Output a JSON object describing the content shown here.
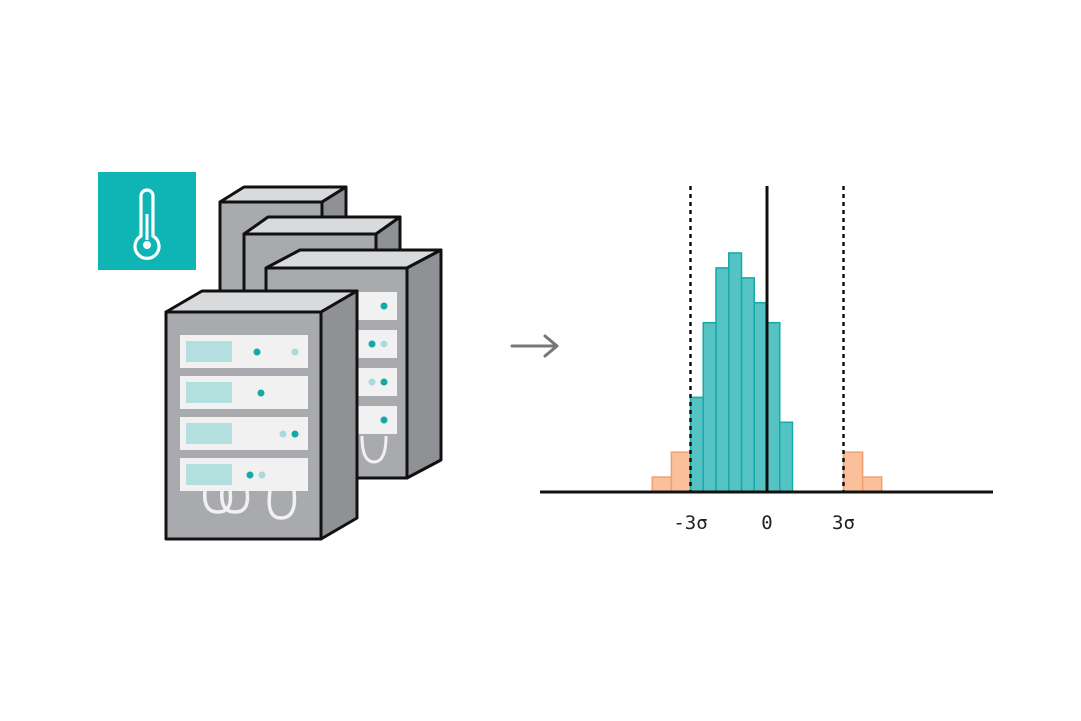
{
  "colors": {
    "accent": "#0fb5b5",
    "normal_bar": "#55c3c3",
    "normal_bar_stroke": "#14aaaa",
    "outlier_bar": "#f9c09a",
    "outlier_bar_stroke": "#f0a070",
    "server_body": "#a8aaad",
    "server_top": "#d9dadb",
    "slot": "#f1f1f1",
    "screen": "#b3dfdf",
    "led": "#14a8a8",
    "led_dim": "#a9dada",
    "outline": "#111111",
    "arrow": "#777777"
  },
  "icons": {
    "thermometer": "thermometer-icon",
    "arrow": "arrow-right-icon",
    "server_rack": "server-rack-icon"
  },
  "chart_data": {
    "type": "bar",
    "title": "",
    "xlabel": "",
    "ylabel": "",
    "x_ticks": [
      {
        "label": "-3σ",
        "value": -3
      },
      {
        "label": "0",
        "value": 0
      },
      {
        "label": "3σ",
        "value": 3
      }
    ],
    "xlim": [
      -5,
      5
    ],
    "ylim": [
      0,
      12
    ],
    "threshold_lines": [
      -3,
      3
    ],
    "center_line": 0,
    "bin_width": 0.5,
    "series": [
      {
        "role": "outlier",
        "bars": [
          {
            "x0": -4.5,
            "value": 0.6
          },
          {
            "x0": -3.75,
            "value": 1.6
          },
          {
            "x0": 3.0,
            "value": 1.6
          },
          {
            "x0": 3.75,
            "value": 0.6
          }
        ]
      },
      {
        "role": "normal",
        "bars": [
          {
            "x0": -3.0,
            "value": 3.8
          },
          {
            "x0": -2.5,
            "value": 6.8
          },
          {
            "x0": -2.0,
            "value": 9.0
          },
          {
            "x0": -1.5,
            "value": 9.6
          },
          {
            "x0": -1.0,
            "value": 8.6
          },
          {
            "x0": -0.5,
            "value": 7.6
          },
          {
            "x0": 0.0,
            "value": 6.8
          },
          {
            "x0": 0.5,
            "value": 2.8
          }
        ]
      }
    ]
  }
}
